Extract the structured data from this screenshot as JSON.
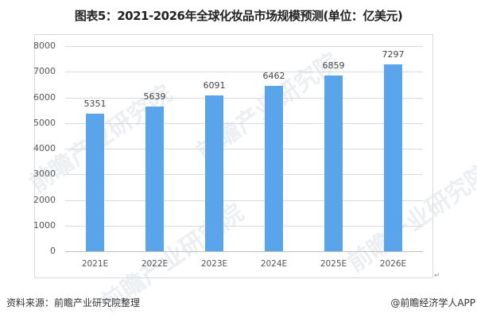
{
  "title": "图表5：2021-2026年全球化妆品市场规模预测(单位：亿美元)",
  "footer": {
    "source": "资料来源：前瞻产业研究院整理",
    "credit": "@前瞻经济学人APP"
  },
  "watermark": "前瞻产业研究院",
  "return_mark": "↵",
  "y_ticks": [
    "0",
    "1000",
    "2000",
    "3000",
    "4000",
    "5000",
    "6000",
    "7000",
    "8000"
  ],
  "colors": {
    "bar": "#5aa4ec",
    "grid": "#d9d9d9"
  },
  "chart_data": {
    "type": "bar",
    "title": "图表5：2021-2026年全球化妆品市场规模预测(单位：亿美元)",
    "xlabel": "",
    "ylabel": "",
    "categories": [
      "2021E",
      "2022E",
      "2023E",
      "2024E",
      "2025E",
      "2026E"
    ],
    "values": [
      5351,
      5639,
      6091,
      6462,
      6859,
      7297
    ],
    "value_labels": [
      "5351",
      "5639",
      "6091",
      "6462",
      "6859",
      "7297"
    ],
    "ylim": [
      0,
      8000
    ],
    "yticks": [
      0,
      1000,
      2000,
      3000,
      4000,
      5000,
      6000,
      7000,
      8000
    ],
    "grid": true,
    "legend": "none",
    "units": "亿美元"
  }
}
